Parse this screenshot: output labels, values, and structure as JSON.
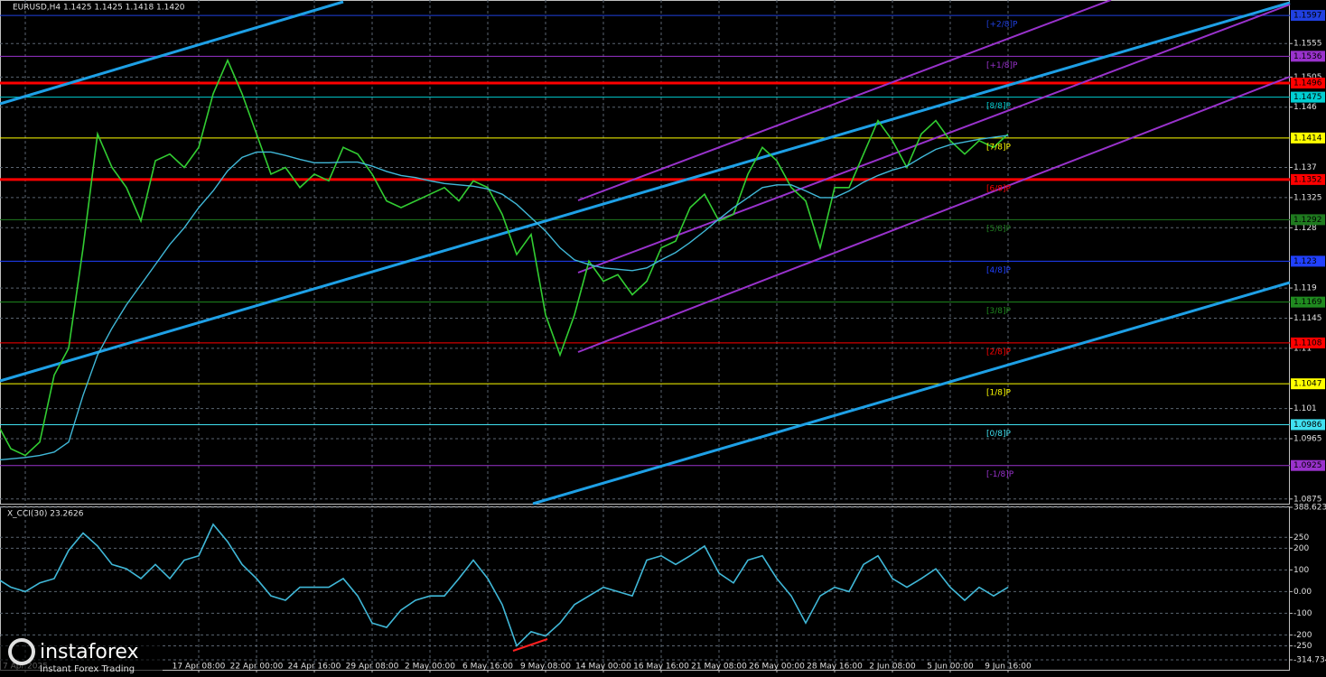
{
  "logo": {
    "name": "instaforex",
    "tagline": "Instant Forex Trading"
  },
  "chart_data": [
    {
      "type": "line",
      "title": "EURUSD,H4  1.1425 1.1425 1.1418 1.1420",
      "categories": [
        null,
        null,
        "7 Apr 2025",
        null,
        null,
        null,
        null,
        null,
        null,
        null,
        null,
        null,
        null,
        null,
        "17 Apr 08:00",
        null,
        null,
        null,
        "22 Apr 00:00",
        null,
        null,
        null,
        "24 Apr 16:00",
        null,
        null,
        null,
        "29 Apr 08:00",
        null,
        null,
        null,
        "2 May 00:00",
        null,
        null,
        null,
        "6 May 16:00",
        null,
        null,
        null,
        "9 May 08:00",
        null,
        null,
        null,
        "14 May 00:00",
        null,
        null,
        null,
        "16 May 16:00",
        null,
        null,
        null,
        "21 May 08:00",
        null,
        null,
        null,
        "26 May 00:00",
        null,
        null,
        null,
        "28 May 16:00",
        null,
        null,
        null,
        "2 Jun 08:00",
        null,
        null,
        null,
        "5 Jun 00:00",
        null,
        null,
        null,
        "9 Jun 16:00"
      ],
      "series": [
        {
          "color": "#32cd32",
          "values": [
            1.099,
            1.095,
            1.094,
            1.096,
            1.106,
            1.11,
            1.125,
            1.142,
            1.137,
            1.134,
            1.129,
            1.138,
            1.139,
            1.137,
            1.14,
            1.148,
            1.153,
            1.148,
            1.142,
            1.136,
            1.137,
            1.134,
            1.136,
            1.135,
            1.14,
            1.139,
            1.136,
            1.132,
            1.131,
            1.132,
            1.133,
            1.134,
            1.132,
            1.135,
            1.134,
            1.13,
            1.124,
            1.127,
            1.115,
            1.109,
            1.115,
            1.123,
            1.12,
            1.121,
            1.118,
            1.12,
            1.125,
            1.126,
            1.131,
            1.133,
            1.129,
            1.13,
            1.136,
            1.14,
            1.138,
            1.134,
            1.132,
            1.125,
            1.134,
            1.134,
            1.139,
            1.144,
            1.141,
            1.137,
            1.142,
            1.144,
            1.141,
            1.139,
            1.141,
            1.14,
            1.142
          ]
        },
        {
          "color": "#40b8d8",
          "values": [
            1.0933,
            1.0935,
            1.0937,
            1.094,
            1.0945,
            1.096,
            1.103,
            1.109,
            1.113,
            1.1165,
            1.1195,
            1.1225,
            1.1255,
            1.128,
            1.131,
            1.1335,
            1.1365,
            1.1385,
            1.1393,
            1.1393,
            1.1388,
            1.1382,
            1.1377,
            1.1377,
            1.1378,
            1.1378,
            1.1372,
            1.1364,
            1.1358,
            1.1355,
            1.135,
            1.1346,
            1.1344,
            1.1342,
            1.1338,
            1.133,
            1.1315,
            1.1295,
            1.1275,
            1.125,
            1.1232,
            1.1225,
            1.122,
            1.1218,
            1.1216,
            1.122,
            1.1232,
            1.1243,
            1.1258,
            1.1275,
            1.1293,
            1.131,
            1.1325,
            1.134,
            1.1344,
            1.1344,
            1.1335,
            1.1325,
            1.1325,
            1.1335,
            1.1348,
            1.1358,
            1.1366,
            1.1372,
            1.1385,
            1.1397,
            1.1404,
            1.1408,
            1.1412,
            1.1415,
            1.1418
          ]
        }
      ],
      "ylim": [
        1.0868,
        1.162
      ],
      "yticks": [
        1.1555,
        1.1505,
        1.146,
        1.137,
        1.1325,
        1.128,
        1.119,
        1.1145,
        1.11,
        1.101,
        1.0965,
        1.0875
      ],
      "grid": true,
      "levels": [
        {
          "value": 1.1597,
          "tag": "[+2/8]P",
          "color": "#2040e0"
        },
        {
          "value": 1.1536,
          "tag": "[+1/8]P",
          "color": "#9932cc"
        },
        {
          "value": 1.1496,
          "color": "#ff0000",
          "width": 3
        },
        {
          "value": 1.1475,
          "tag": "[8/8]P",
          "color": "#00ced1"
        },
        {
          "value": 1.1414,
          "tag": "[7/8]P",
          "color": "#ffff00"
        },
        {
          "value": 1.1352,
          "tag": "[6/8]P",
          "color": "#ff0000",
          "width": 3
        },
        {
          "value": 1.1292,
          "tag": "[5/8]P",
          "color": "#1f7a1f"
        },
        {
          "value": 1.123,
          "tag": "[4/8]P",
          "color": "#2040ff"
        },
        {
          "value": 1.1169,
          "tag": "[3/8]P",
          "color": "#1f8a1f"
        },
        {
          "value": 1.1108,
          "tag": "[2/8]P",
          "color": "#ff0000"
        },
        {
          "value": 1.1047,
          "tag": "[1/8]P",
          "color": "#ffff00"
        },
        {
          "value": 1.0986,
          "tag": "[0/8]P",
          "color": "#40e0f0"
        },
        {
          "value": 1.0925,
          "tag": "[-1/8]P",
          "color": "#9932cc"
        }
      ]
    },
    {
      "type": "line",
      "title": "X_CCI(30) 23.2626",
      "series": [
        {
          "color": "#40b8d8",
          "values": [
            62,
            20,
            0,
            40,
            60,
            190,
            270,
            210,
            125,
            105,
            60,
            125,
            60,
            145,
            165,
            310,
            230,
            125,
            60,
            -20,
            -40,
            20,
            20,
            20,
            60,
            -20,
            -145,
            -165,
            -85,
            -40,
            -20,
            -20,
            60,
            145,
            60,
            -60,
            -250,
            -185,
            -205,
            -145,
            -60,
            -20,
            20,
            0,
            -20,
            145,
            165,
            125,
            165,
            210,
            85,
            40,
            145,
            165,
            60,
            -20,
            -145,
            -20,
            20,
            0,
            125,
            165,
            60,
            20,
            60,
            105,
            20,
            -40,
            20,
            -20,
            20
          ]
        }
      ],
      "ylim": [
        -314.7348,
        388.6237
      ],
      "yticks": [
        388.6237,
        250,
        200,
        100,
        {
          "value": 0,
          "label": "0.00"
        },
        -100,
        -200,
        -250,
        -314.7348
      ],
      "grid": true
    }
  ]
}
